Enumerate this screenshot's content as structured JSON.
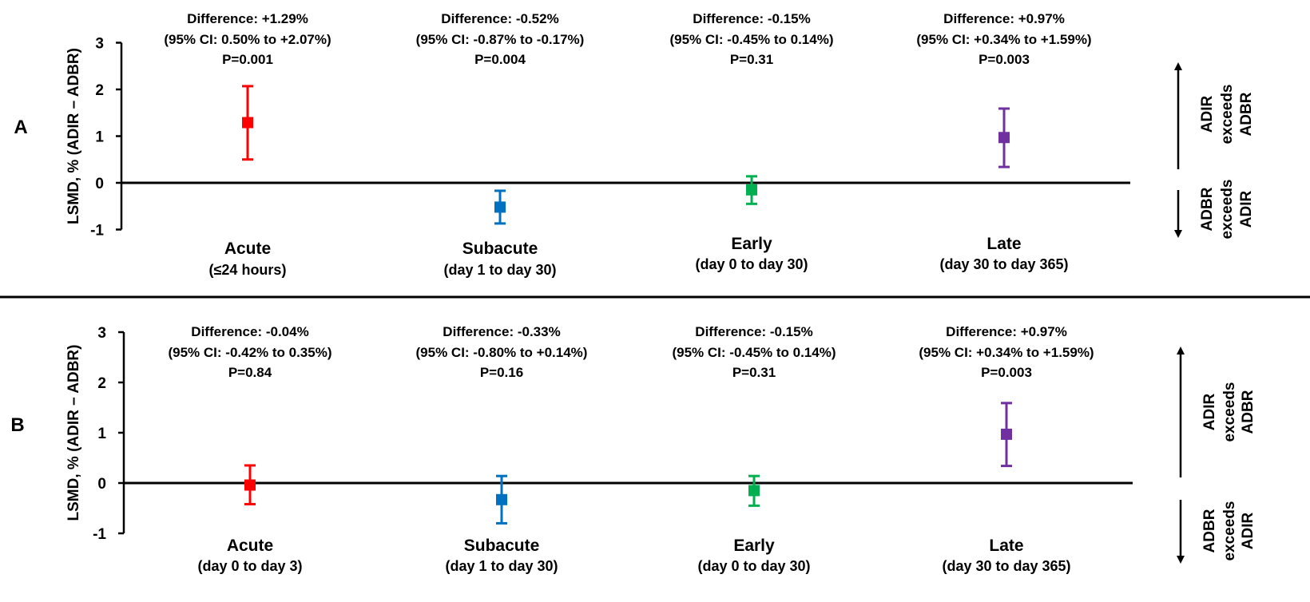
{
  "chart_data": [
    {
      "type": "scatter",
      "panel_label": "A",
      "ylabel": "LSMD, % (ADIR – ADBR)",
      "ylim": [
        -1,
        3
      ],
      "yticks": [
        "3",
        "2",
        "1",
        "0",
        "-1"
      ],
      "grid": false,
      "legend": "none",
      "side_labels": {
        "upper": [
          "ADIR",
          "exceeds",
          "ADBR"
        ],
        "lower": [
          "ADBR",
          "exceeds",
          "ADIR"
        ]
      },
      "categories": [
        {
          "name": "Acute",
          "sub": "(≤24 hours)",
          "value": 1.29,
          "ci_low": 0.5,
          "ci_high": 2.07,
          "color": "#ff0000",
          "annotation": [
            "Difference: +1.29%",
            "(95% CI: 0.50% to +2.07%)",
            "P=0.001"
          ]
        },
        {
          "name": "Subacute",
          "sub": "(day 1 to day 30)",
          "value": -0.52,
          "ci_low": -0.87,
          "ci_high": -0.17,
          "color": "#0070c0",
          "annotation": [
            "Difference: -0.52%",
            "(95% CI: -0.87% to -0.17%)",
            "P=0.004"
          ]
        },
        {
          "name": "Early",
          "sub": "(day 0 to day 30)",
          "value": -0.15,
          "ci_low": -0.45,
          "ci_high": 0.14,
          "color": "#00b050",
          "annotation": [
            "Difference: -0.15%",
            "(95% CI: -0.45% to 0.14%)",
            "P=0.31"
          ]
        },
        {
          "name": "Late",
          "sub": "(day 30 to day 365)",
          "value": 0.97,
          "ci_low": 0.34,
          "ci_high": 1.59,
          "color": "#7030a0",
          "annotation": [
            "Difference: +0.97%",
            "(95% CI: +0.34% to +1.59%)",
            "P=0.003"
          ]
        }
      ]
    },
    {
      "type": "scatter",
      "panel_label": "B",
      "ylabel": "LSMD, % (ADIR – ADBR)",
      "ylim": [
        -1,
        3
      ],
      "yticks": [
        "3",
        "2",
        "1",
        "0",
        "-1"
      ],
      "grid": false,
      "legend": "none",
      "side_labels": {
        "upper": [
          "ADIR",
          "exceeds",
          "ADBR"
        ],
        "lower": [
          "ADBR",
          "exceeds",
          "ADIR"
        ]
      },
      "categories": [
        {
          "name": "Acute",
          "sub": "(day 0 to day 3)",
          "value": -0.04,
          "ci_low": -0.42,
          "ci_high": 0.35,
          "color": "#ff0000",
          "annotation": [
            "Difference: -0.04%",
            "(95% CI: -0.42% to 0.35%)",
            "P=0.84"
          ]
        },
        {
          "name": "Subacute",
          "sub": "(day 1 to day 30)",
          "value": -0.33,
          "ci_low": -0.8,
          "ci_high": 0.14,
          "color": "#0070c0",
          "annotation": [
            "Difference: -0.33%",
            "(95% CI: -0.80% to +0.14%)",
            "P=0.16"
          ]
        },
        {
          "name": "Early",
          "sub": "(day 0 to day 30)",
          "value": -0.15,
          "ci_low": -0.45,
          "ci_high": 0.14,
          "color": "#00b050",
          "annotation": [
            "Difference: -0.15%",
            "(95% CI: -0.45% to 0.14%)",
            "P=0.31"
          ]
        },
        {
          "name": "Late",
          "sub": "(day 30 to day 365)",
          "value": 0.97,
          "ci_low": 0.34,
          "ci_high": 1.59,
          "color": "#7030a0",
          "annotation": [
            "Difference: +0.97%",
            "(95% CI: +0.34% to +1.59%)",
            "P=0.003"
          ]
        }
      ]
    }
  ]
}
